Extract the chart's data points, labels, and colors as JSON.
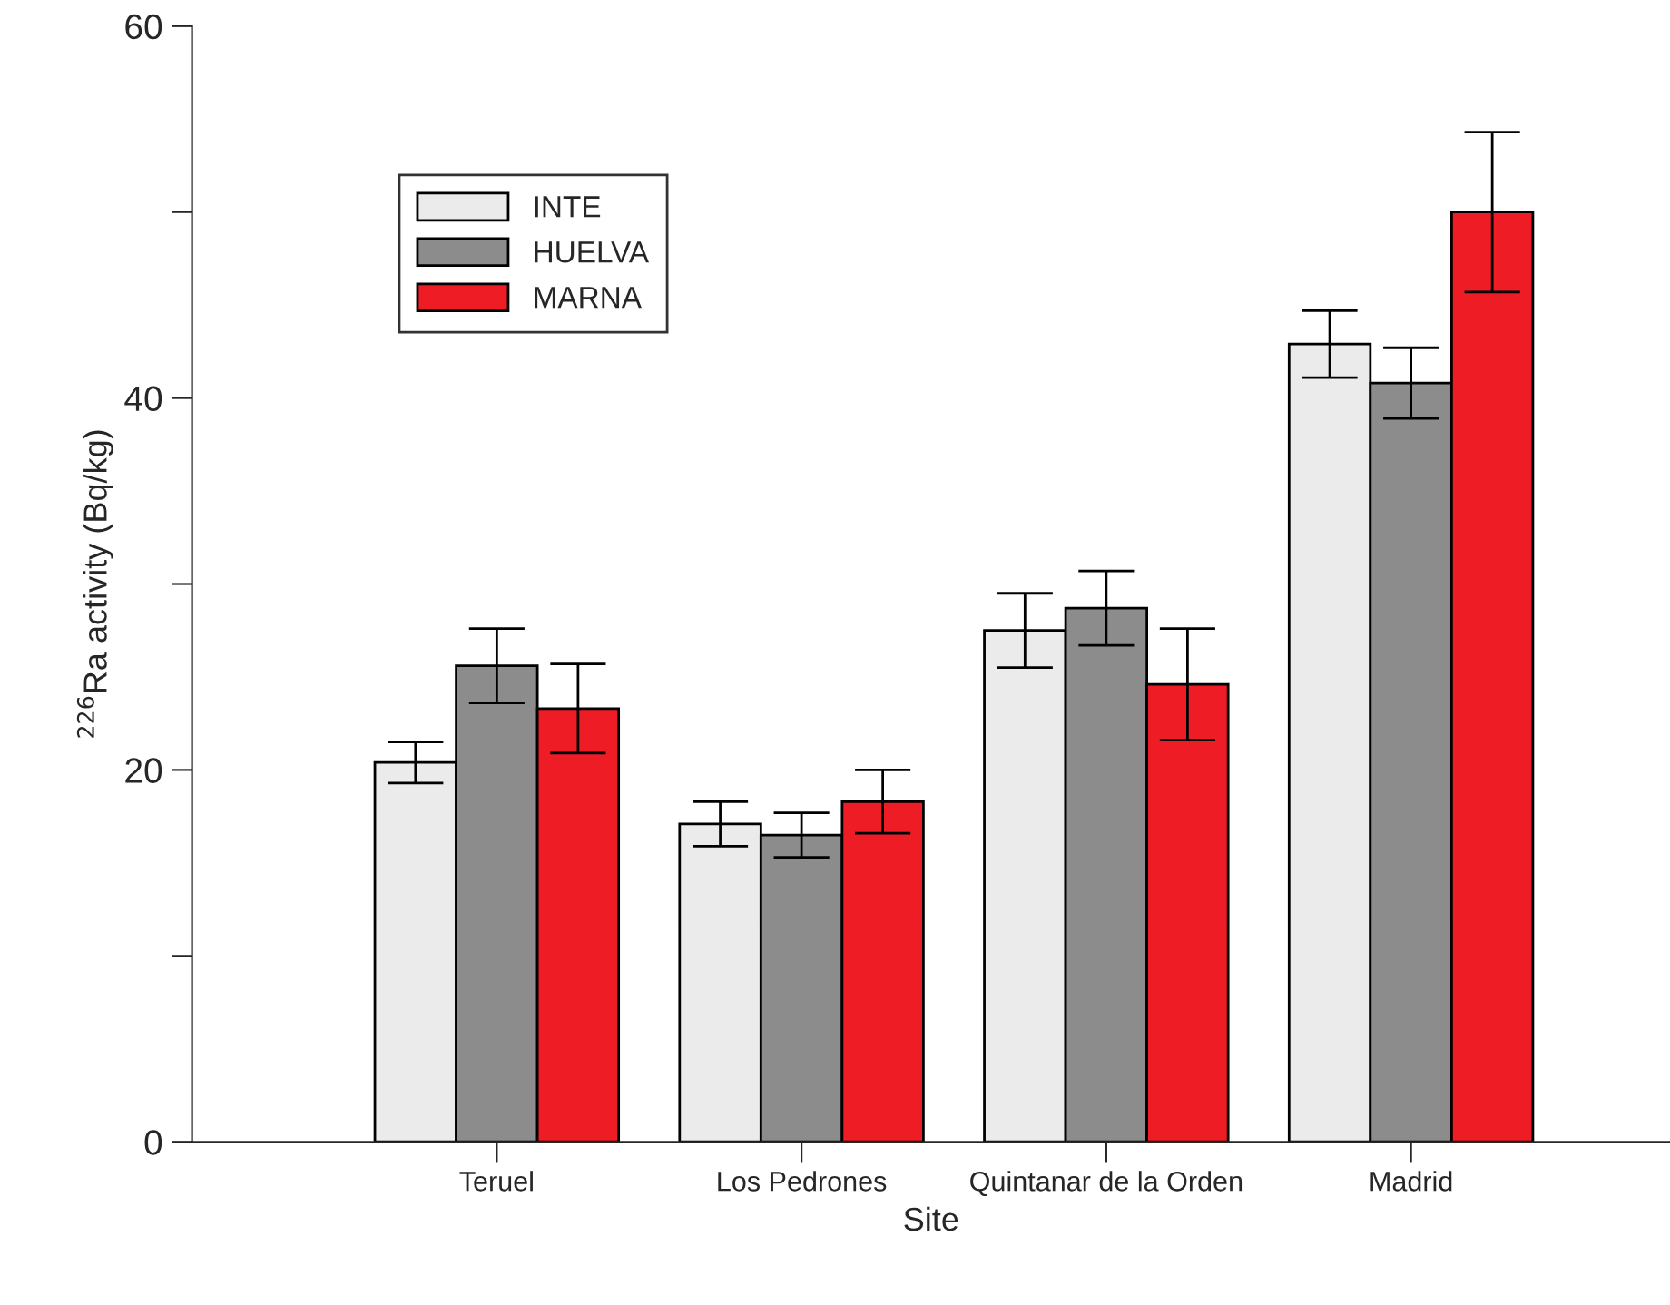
{
  "chart_data": {
    "type": "bar",
    "xlabel": "Site",
    "ylabel": "$^{226}$Ra activity (Bq/kg)",
    "categories": [
      "Teruel",
      "Los Pedrones",
      "Quintanar de la Orden",
      "Madrid"
    ],
    "series": [
      {
        "name": "INTE",
        "color": "#ebebeb",
        "values": [
          20.4,
          17.1,
          27.5,
          42.9
        ],
        "errors": [
          1.1,
          1.2,
          2.0,
          1.8
        ]
      },
      {
        "name": "HUELVA",
        "color": "#8c8c8c",
        "values": [
          25.6,
          16.5,
          28.7,
          40.8
        ],
        "errors": [
          2.0,
          1.2,
          2.0,
          1.9
        ]
      },
      {
        "name": "MARNA",
        "color": "#ee1c24",
        "values": [
          23.3,
          18.3,
          24.6,
          50.0
        ],
        "errors": [
          2.4,
          1.7,
          3.0,
          4.3
        ]
      }
    ],
    "ylim": [
      0,
      60
    ],
    "yticks": [
      0,
      {
        "value": 10,
        "label": null
      },
      20,
      {
        "value": 30,
        "label": null
      },
      40,
      {
        "value": 50,
        "label": null
      },
      60
    ],
    "grid": false,
    "legend": "top left"
  }
}
